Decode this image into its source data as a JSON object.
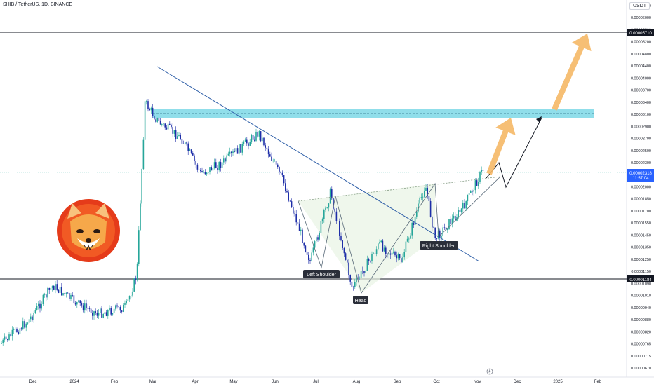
{
  "header": {
    "symbol_line": "SHIB / TetherUS, 1D, BINANCE"
  },
  "y_axis_unit": "USDT",
  "colors": {
    "up": "#26a69a",
    "down": "#1e2ea8",
    "trendline": "#2f5fa8",
    "resistance_zone": "#7dd8e6",
    "arrow": "#f5b866",
    "price_badge": "#2962ff"
  },
  "chart_data": {
    "type": "candlestick",
    "y_scale": "log",
    "ylim": [
      6.6e-06,
      6.9e-06
    ],
    "y_ticks": [
      "0.00006400",
      "0.00006000",
      "0.00005500",
      "0.00005200",
      "0.00004800",
      "0.00004400",
      "0.00004000",
      "0.00003700",
      "0.00003400",
      "0.00003100",
      "0.00002900",
      "0.00002700",
      "0.00002500",
      "0.00002300",
      "0.00002150",
      "0.00002000",
      "0.00001850",
      "0.00001700",
      "0.00001550",
      "0.00001450",
      "0.00001350",
      "0.00001250",
      "0.00001150",
      "0.00001090",
      "0.00001010",
      "0.00000940",
      "0.00000880",
      "0.00000820",
      "0.00000765",
      "0.00000715",
      "0.00000670"
    ],
    "x_ticks": [
      "Dec",
      "2024",
      "Feb",
      "Mar",
      "Apr",
      "May",
      "Jun",
      "Jul",
      "Aug",
      "Sep",
      "Oct",
      "Nov",
      "Dec",
      "2025",
      "Feb"
    ],
    "price_labels": {
      "upper_level": "0.00005710",
      "lower_level": "0.00001184",
      "current": "0.00002318",
      "countdown": "11:57:04"
    },
    "pattern_labels": [
      "Left Shoulder",
      "Head",
      "Right Shoulder"
    ],
    "approx_path": [
      {
        "date": "2023-11-20",
        "close": 7.8e-06
      },
      {
        "date": "2023-12-10",
        "close": 9e-06
      },
      {
        "date": "2023-12-28",
        "close": 1.12e-05
      },
      {
        "date": "2024-01-15",
        "close": 1e-05
      },
      {
        "date": "2024-01-30",
        "close": 9.4e-06
      },
      {
        "date": "2024-02-20",
        "close": 9.8e-06
      },
      {
        "date": "2024-02-28",
        "close": 1.2e-05
      },
      {
        "date": "2024-03-05",
        "close": 3.5e-05
      },
      {
        "date": "2024-03-15",
        "close": 3.1e-05
      },
      {
        "date": "2024-04-01",
        "close": 2.8e-05
      },
      {
        "date": "2024-04-15",
        "close": 2.25e-05
      },
      {
        "date": "2024-05-01",
        "close": 2.4e-05
      },
      {
        "date": "2024-05-28",
        "close": 2.9e-05
      },
      {
        "date": "2024-06-15",
        "close": 2.15e-05
      },
      {
        "date": "2024-07-05",
        "close": 1.3e-05
      },
      {
        "date": "2024-07-20",
        "close": 2e-05
      },
      {
        "date": "2024-08-05",
        "close": 1.1e-05
      },
      {
        "date": "2024-08-25",
        "close": 1.45e-05
      },
      {
        "date": "2024-09-10",
        "close": 1.3e-05
      },
      {
        "date": "2024-09-28",
        "close": 2.1e-05
      },
      {
        "date": "2024-10-05",
        "close": 1.5e-05
      },
      {
        "date": "2024-10-25",
        "close": 1.8e-05
      },
      {
        "date": "2024-11-10",
        "close": 2.32e-05
      }
    ]
  }
}
